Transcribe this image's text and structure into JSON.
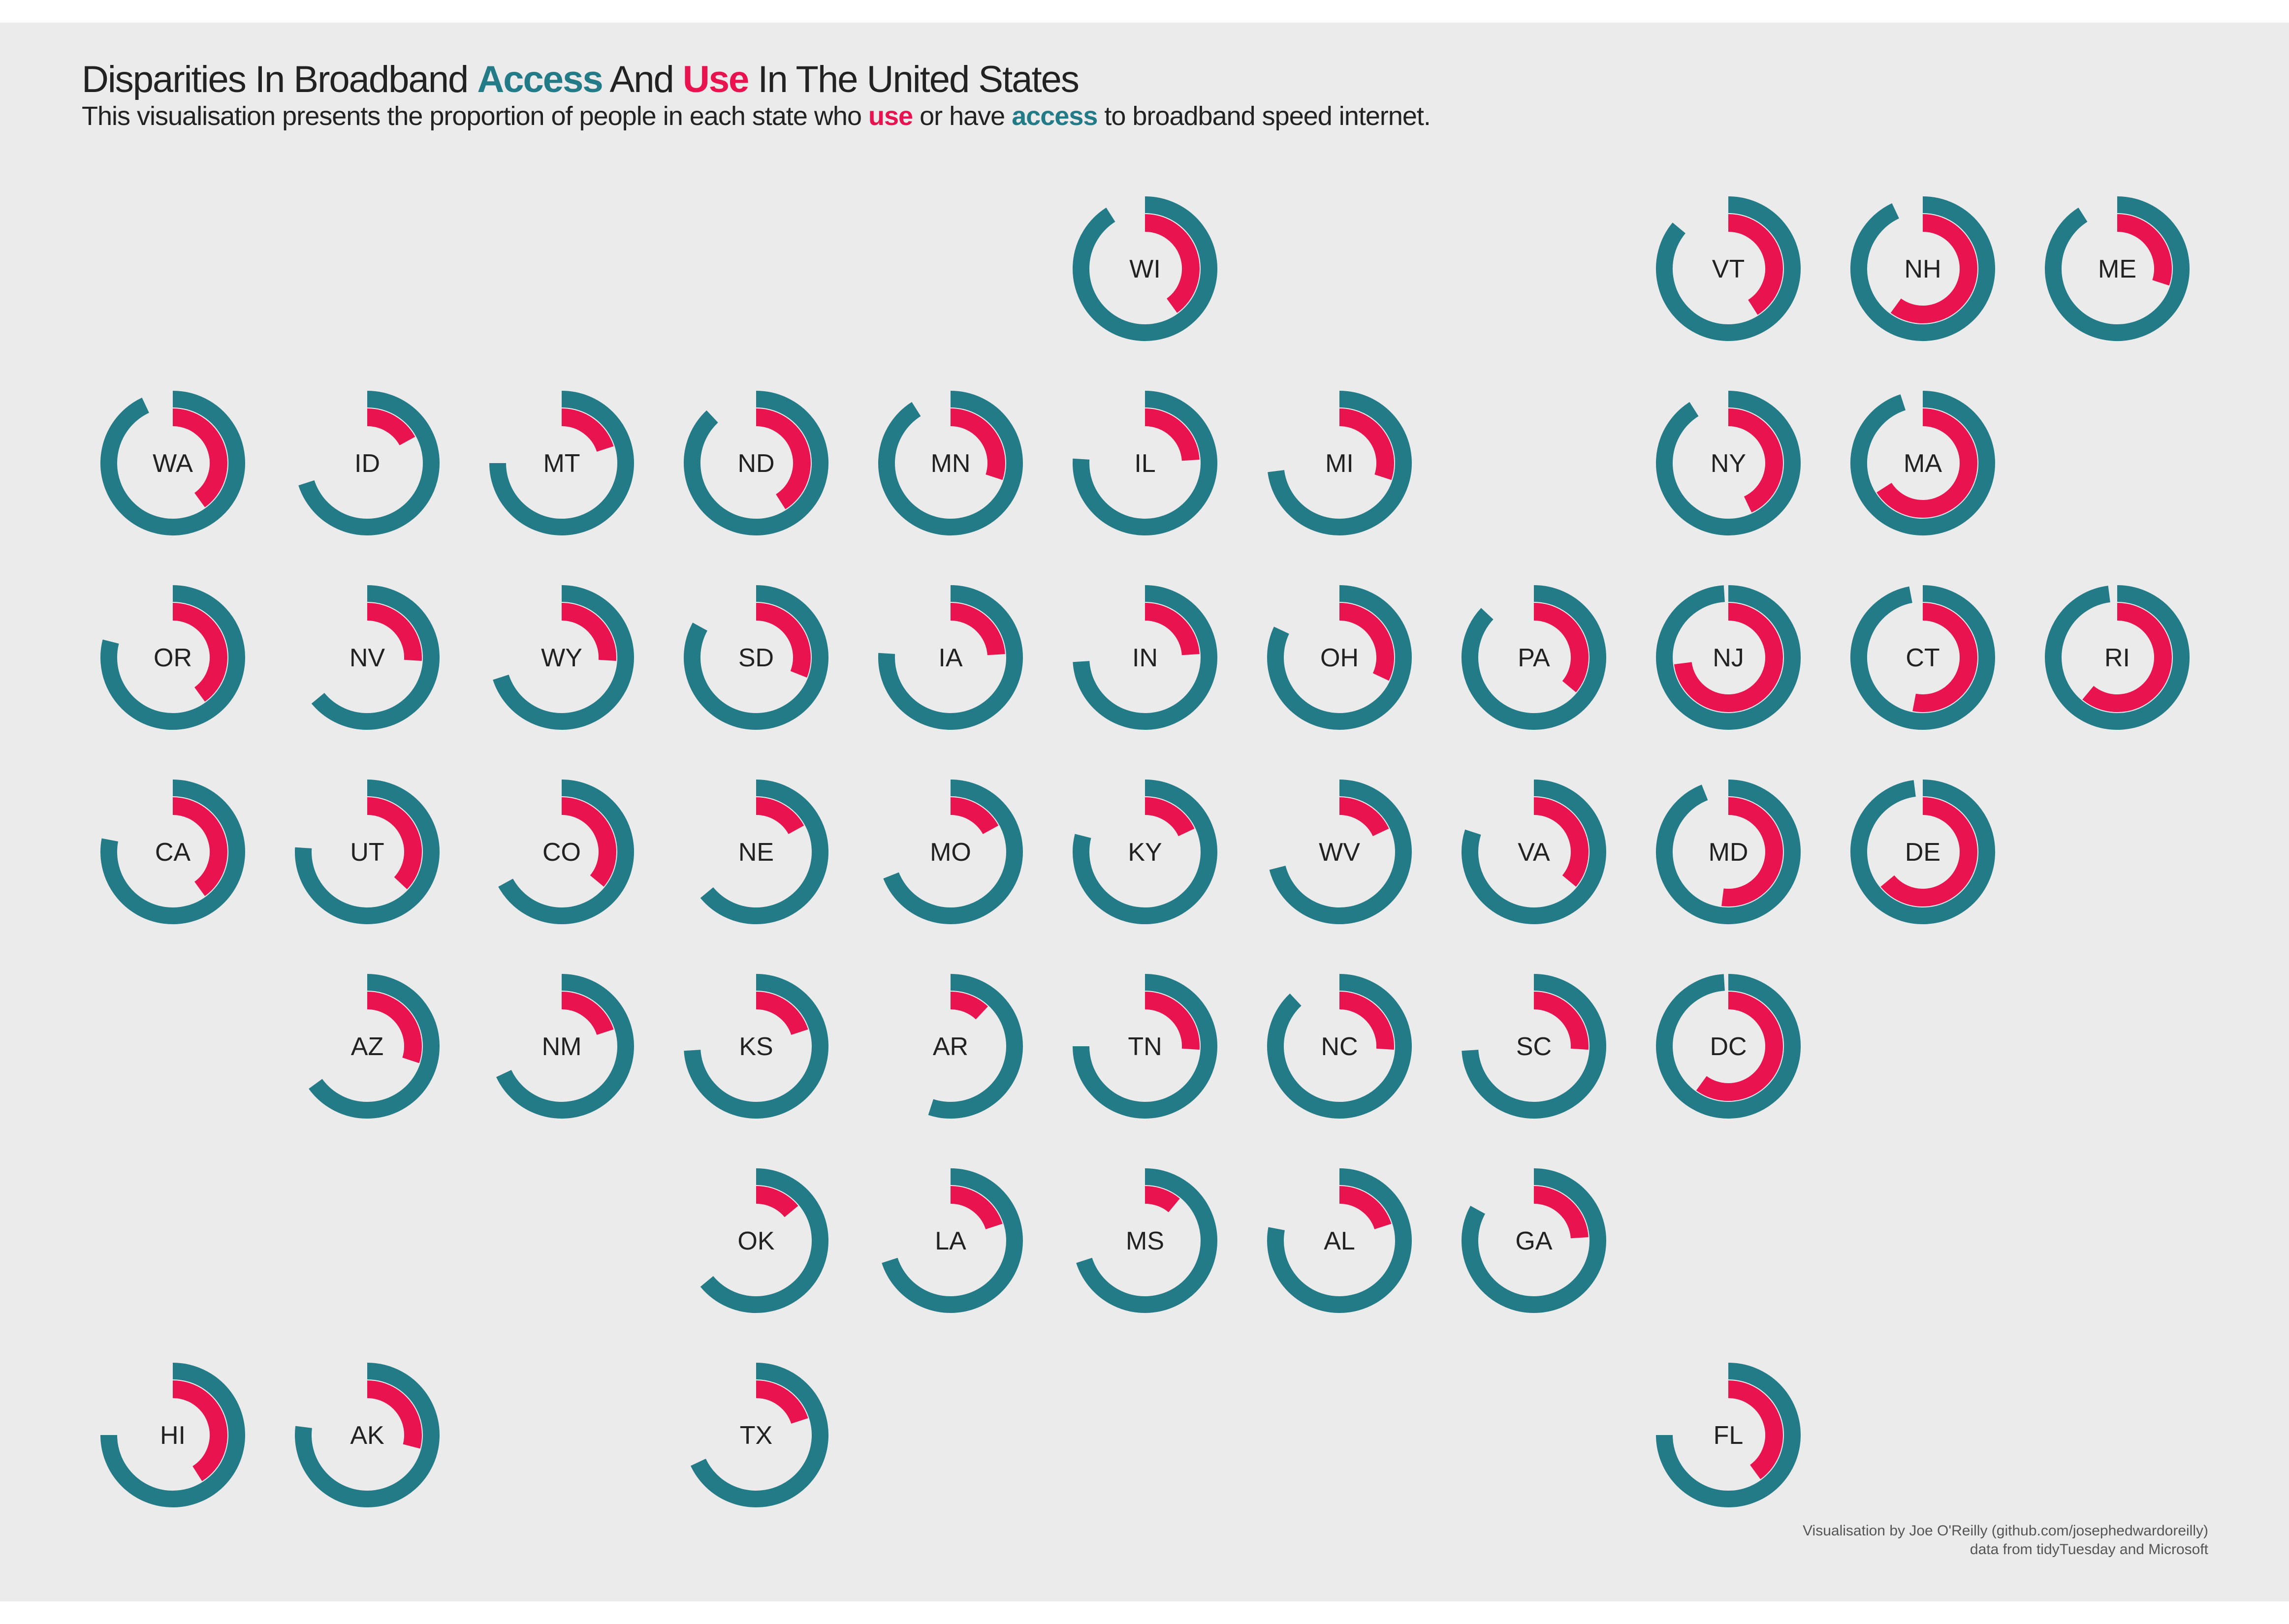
{
  "title": {
    "pre": "Disparities In Broadband ",
    "access": "Access",
    "mid": " And ",
    "use": "Use",
    "post": " In The United States"
  },
  "subtitle": {
    "pre": "This visualisation presents the proportion of people in each state who ",
    "use": "use",
    "mid": " or have ",
    "access": "access",
    "post": " to broadband speed internet."
  },
  "credit": {
    "line1": "Visualisation by Joe O'Reilly (github.com/josephedwardoreilly)",
    "line2": "data from tidyTuesday and Microsoft"
  },
  "colors": {
    "access": "#247b88",
    "use": "#e8134f",
    "background": "#ebebeb",
    "text": "#222222"
  },
  "chart_data": {
    "type": "radial-bar-tile-map",
    "series": [
      {
        "name": "access"
      },
      {
        "name": "use"
      }
    ],
    "unit": "proportion of people",
    "grid": {
      "rows": 7,
      "cols": 11
    },
    "states": [
      {
        "state": "WI",
        "row": 0,
        "col": 5,
        "access": 0.91,
        "use": 0.4
      },
      {
        "state": "VT",
        "row": 0,
        "col": 8,
        "access": 0.86,
        "use": 0.41
      },
      {
        "state": "NH",
        "row": 0,
        "col": 9,
        "access": 0.93,
        "use": 0.6
      },
      {
        "state": "ME",
        "row": 0,
        "col": 10,
        "access": 0.91,
        "use": 0.3
      },
      {
        "state": "WA",
        "row": 1,
        "col": 0,
        "access": 0.93,
        "use": 0.4
      },
      {
        "state": "ID",
        "row": 1,
        "col": 1,
        "access": 0.7,
        "use": 0.17
      },
      {
        "state": "MT",
        "row": 1,
        "col": 2,
        "access": 0.75,
        "use": 0.2
      },
      {
        "state": "ND",
        "row": 1,
        "col": 3,
        "access": 0.88,
        "use": 0.41
      },
      {
        "state": "MN",
        "row": 1,
        "col": 4,
        "access": 0.91,
        "use": 0.3
      },
      {
        "state": "IL",
        "row": 1,
        "col": 5,
        "access": 0.76,
        "use": 0.24
      },
      {
        "state": "MI",
        "row": 1,
        "col": 6,
        "access": 0.73,
        "use": 0.3
      },
      {
        "state": "NY",
        "row": 1,
        "col": 8,
        "access": 0.91,
        "use": 0.43
      },
      {
        "state": "MA",
        "row": 1,
        "col": 9,
        "access": 0.95,
        "use": 0.66
      },
      {
        "state": "OR",
        "row": 2,
        "col": 0,
        "access": 0.79,
        "use": 0.4
      },
      {
        "state": "NV",
        "row": 2,
        "col": 1,
        "access": 0.64,
        "use": 0.26
      },
      {
        "state": "WY",
        "row": 2,
        "col": 2,
        "access": 0.7,
        "use": 0.26
      },
      {
        "state": "SD",
        "row": 2,
        "col": 3,
        "access": 0.83,
        "use": 0.31
      },
      {
        "state": "IA",
        "row": 2,
        "col": 4,
        "access": 0.76,
        "use": 0.24
      },
      {
        "state": "IN",
        "row": 2,
        "col": 5,
        "access": 0.74,
        "use": 0.24
      },
      {
        "state": "OH",
        "row": 2,
        "col": 6,
        "access": 0.82,
        "use": 0.32
      },
      {
        "state": "PA",
        "row": 2,
        "col": 7,
        "access": 0.87,
        "use": 0.36
      },
      {
        "state": "NJ",
        "row": 2,
        "col": 8,
        "access": 0.99,
        "use": 0.73
      },
      {
        "state": "CT",
        "row": 2,
        "col": 9,
        "access": 0.97,
        "use": 0.53
      },
      {
        "state": "RI",
        "row": 2,
        "col": 10,
        "access": 0.98,
        "use": 0.61
      },
      {
        "state": "CA",
        "row": 3,
        "col": 0,
        "access": 0.78,
        "use": 0.4
      },
      {
        "state": "UT",
        "row": 3,
        "col": 1,
        "access": 0.76,
        "use": 0.37
      },
      {
        "state": "CO",
        "row": 3,
        "col": 2,
        "access": 0.67,
        "use": 0.36
      },
      {
        "state": "NE",
        "row": 3,
        "col": 3,
        "access": 0.64,
        "use": 0.17
      },
      {
        "state": "MO",
        "row": 3,
        "col": 4,
        "access": 0.69,
        "use": 0.17
      },
      {
        "state": "KY",
        "row": 3,
        "col": 5,
        "access": 0.79,
        "use": 0.18
      },
      {
        "state": "WV",
        "row": 3,
        "col": 6,
        "access": 0.71,
        "use": 0.18
      },
      {
        "state": "VA",
        "row": 3,
        "col": 7,
        "access": 0.8,
        "use": 0.36
      },
      {
        "state": "MD",
        "row": 3,
        "col": 8,
        "access": 0.94,
        "use": 0.52
      },
      {
        "state": "DE",
        "row": 3,
        "col": 9,
        "access": 0.98,
        "use": 0.64
      },
      {
        "state": "AZ",
        "row": 4,
        "col": 1,
        "access": 0.65,
        "use": 0.3
      },
      {
        "state": "NM",
        "row": 4,
        "col": 2,
        "access": 0.68,
        "use": 0.2
      },
      {
        "state": "KS",
        "row": 4,
        "col": 3,
        "access": 0.74,
        "use": 0.2
      },
      {
        "state": "AR",
        "row": 4,
        "col": 4,
        "access": 0.55,
        "use": 0.12
      },
      {
        "state": "TN",
        "row": 4,
        "col": 5,
        "access": 0.75,
        "use": 0.26
      },
      {
        "state": "NC",
        "row": 4,
        "col": 6,
        "access": 0.88,
        "use": 0.26
      },
      {
        "state": "SC",
        "row": 4,
        "col": 7,
        "access": 0.74,
        "use": 0.26
      },
      {
        "state": "DC",
        "row": 4,
        "col": 8,
        "access": 0.99,
        "use": 0.6
      },
      {
        "state": "OK",
        "row": 5,
        "col": 3,
        "access": 0.64,
        "use": 0.14
      },
      {
        "state": "LA",
        "row": 5,
        "col": 4,
        "access": 0.7,
        "use": 0.2
      },
      {
        "state": "MS",
        "row": 5,
        "col": 5,
        "access": 0.7,
        "use": 0.11
      },
      {
        "state": "AL",
        "row": 5,
        "col": 6,
        "access": 0.78,
        "use": 0.2
      },
      {
        "state": "GA",
        "row": 5,
        "col": 7,
        "access": 0.83,
        "use": 0.24
      },
      {
        "state": "HI",
        "row": 6,
        "col": 0,
        "access": 0.75,
        "use": 0.41
      },
      {
        "state": "AK",
        "row": 6,
        "col": 1,
        "access": 0.77,
        "use": 0.29
      },
      {
        "state": "TX",
        "row": 6,
        "col": 3,
        "access": 0.68,
        "use": 0.2
      },
      {
        "state": "FL",
        "row": 6,
        "col": 8,
        "access": 0.75,
        "use": 0.4
      }
    ]
  }
}
